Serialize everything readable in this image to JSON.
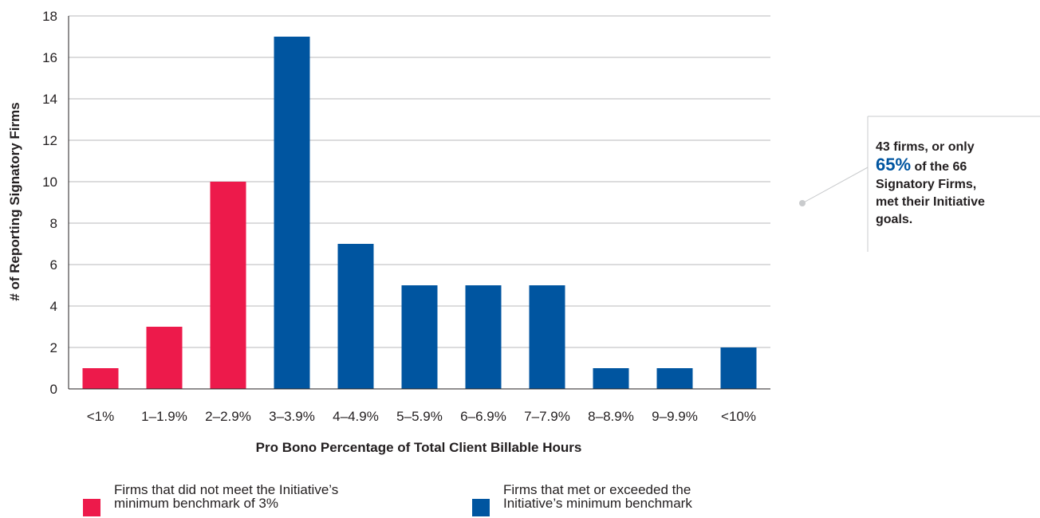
{
  "chart_data": {
    "type": "bar",
    "title": "",
    "xlabel": "Pro Bono Percentage of Total Client Billable Hours",
    "ylabel": "# of Reporting Signatory Firms",
    "ylim": [
      0,
      18
    ],
    "yticks": [
      0,
      2,
      4,
      6,
      8,
      10,
      12,
      14,
      16,
      18
    ],
    "grid": true,
    "categories": [
      "<1%",
      "1–1.9%",
      "2–2.9%",
      "3–3.9%",
      "4–4.9%",
      "5–5.9%",
      "6–6.9%",
      "7–7.9%",
      "8–8.9%",
      "9–9.9%",
      "<10%"
    ],
    "values": [
      1,
      3,
      10,
      17,
      7,
      5,
      5,
      5,
      1,
      1,
      2
    ],
    "groups": [
      "below",
      "below",
      "below",
      "met",
      "met",
      "met",
      "met",
      "met",
      "met",
      "met",
      "met"
    ],
    "colors": {
      "below": "#ed1a4b",
      "met": "#0055a0"
    },
    "legend": {
      "placement": "bottom",
      "items": [
        {
          "key": "below",
          "line1": "Firms that did not meet the Initiative’s",
          "line2": "minimum benchmark of 3%"
        },
        {
          "key": "met",
          "line1": "Firms that met or exceeded the",
          "line2": "Initiative’s minimum benchmark"
        }
      ]
    },
    "annotation": {
      "line1": "43 firms, or only",
      "highlight": "65%",
      "line2_rest": "of the 66",
      "line3": "Signatory Firms,",
      "line4": "met their Initiative",
      "line5": "goals."
    }
  }
}
